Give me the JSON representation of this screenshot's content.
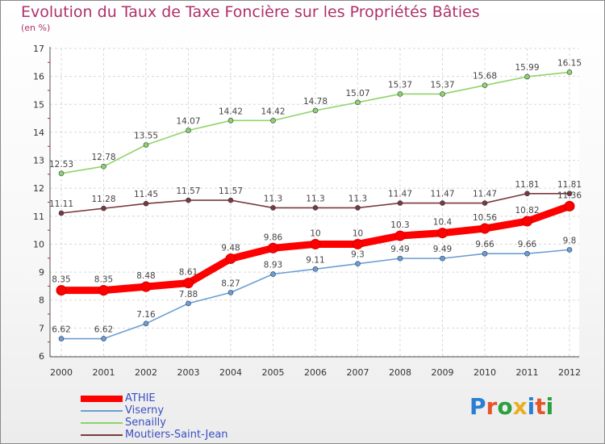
{
  "header": {
    "title": "Evolution du Taux de Taxe Foncière sur les Propriétés Bâties",
    "unit": "(en %)"
  },
  "logo": {
    "text": "Proxiti",
    "letters": [
      "P",
      "r",
      "o",
      "x",
      "i",
      "t",
      "i"
    ],
    "colors": [
      "#2a7fd4",
      "#e8542a",
      "#2aa040",
      "#e8b020",
      "#2a7fd4",
      "#e8542a",
      "#2aa040"
    ]
  },
  "chart_data": {
    "type": "line",
    "x": [
      "2000",
      "2001",
      "2002",
      "2003",
      "2004",
      "2005",
      "2006",
      "2007",
      "2008",
      "2009",
      "2010",
      "2011",
      "2012"
    ],
    "ylim": [
      6,
      17
    ],
    "yticks": [
      "6",
      "7",
      "8",
      "9",
      "10",
      "11",
      "12",
      "13",
      "14",
      "15",
      "16",
      "17"
    ],
    "grid": true,
    "legend": "bottom-left",
    "series": [
      {
        "name": "ATHIE",
        "color": "#ff0000",
        "values": [
          8.35,
          8.35,
          8.48,
          8.61,
          9.48,
          9.86,
          10,
          10,
          10.3,
          10.4,
          10.56,
          10.82,
          11.36
        ],
        "labels": [
          "8.35",
          "8.35",
          "8.48",
          "8.61",
          "9.48",
          "9.86",
          "10",
          "10",
          "10.3",
          "10.4",
          "10.56",
          "10.82",
          "11.36"
        ]
      },
      {
        "name": "Viserny",
        "color": "#6a9fd4",
        "values": [
          6.62,
          6.62,
          7.16,
          7.88,
          8.27,
          8.93,
          9.11,
          9.3,
          9.49,
          9.49,
          9.66,
          9.66,
          9.8
        ],
        "labels": [
          "6.62",
          "6.62",
          "7.16",
          "7.88",
          "8.27",
          "8.93",
          "9.11",
          "9.3",
          "9.49",
          "9.49",
          "9.66",
          "9.66",
          "9.8"
        ]
      },
      {
        "name": "Senailly",
        "color": "#8fd46a",
        "values": [
          12.53,
          12.78,
          13.55,
          14.07,
          14.42,
          14.42,
          14.78,
          15.07,
          15.37,
          15.37,
          15.68,
          15.99,
          16.15
        ],
        "labels": [
          "12.53",
          "12.78",
          "13.55",
          "14.07",
          "14.42",
          "14.42",
          "14.78",
          "15.07",
          "15.37",
          "15.37",
          "15.68",
          "15.99",
          "16.15"
        ]
      },
      {
        "name": "Moutiers-Saint-Jean",
        "color": "#7a3a3a",
        "values": [
          11.11,
          11.28,
          11.45,
          11.57,
          11.57,
          11.3,
          11.3,
          11.3,
          11.47,
          11.47,
          11.47,
          11.81,
          11.81
        ],
        "labels": [
          "11.11",
          "11.28",
          "11.45",
          "11.57",
          "11.57",
          "11.3",
          "11.3",
          "11.3",
          "11.47",
          "11.47",
          "11.47",
          "11.81",
          "11.81"
        ]
      }
    ]
  }
}
